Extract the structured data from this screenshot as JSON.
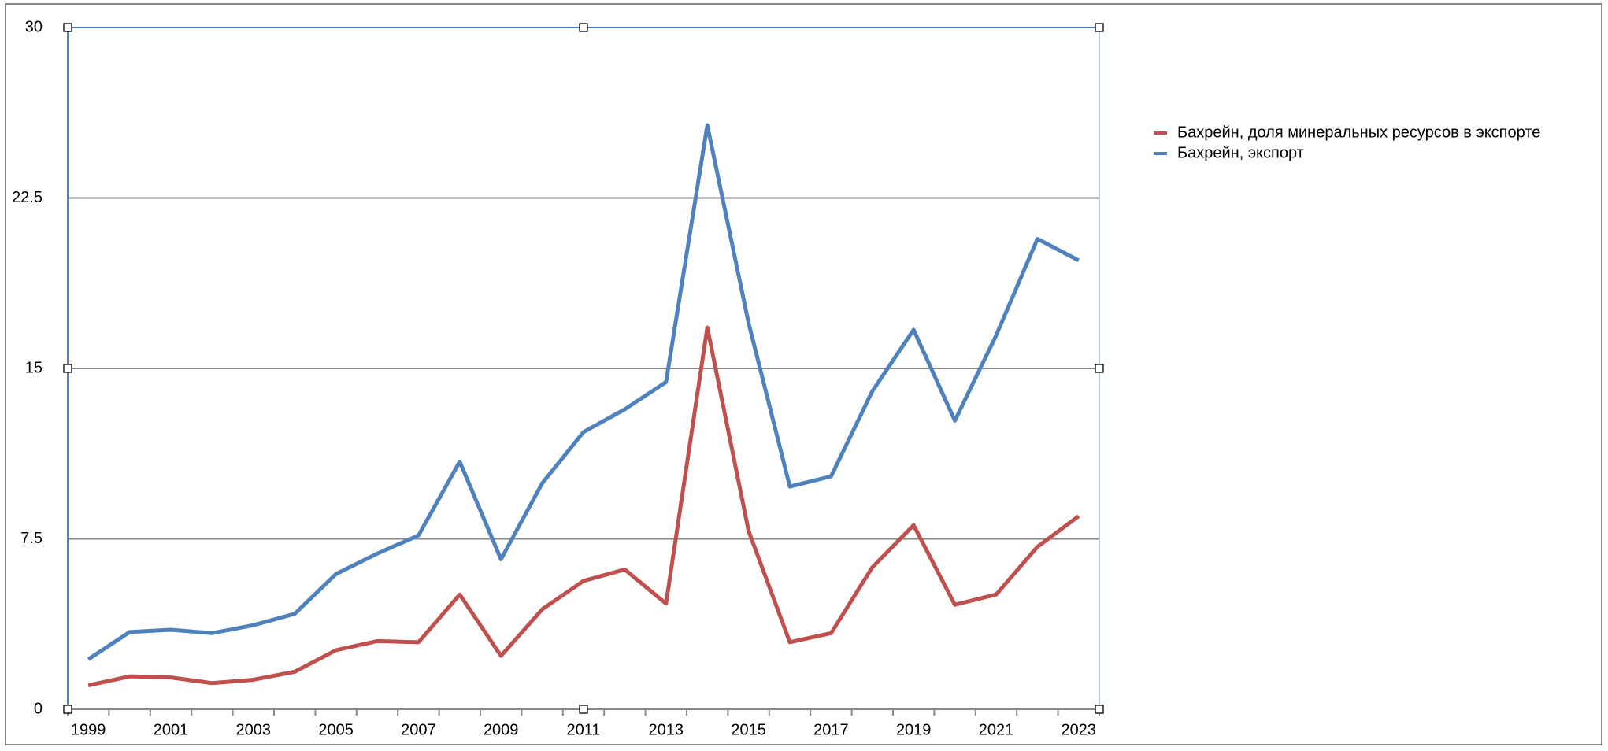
{
  "chart_data": {
    "type": "line",
    "categories": [
      "1999",
      null,
      "2001",
      null,
      "2003",
      null,
      "2005",
      null,
      "2007",
      null,
      "2009",
      null,
      "2011",
      null,
      "2013",
      null,
      "2015",
      null,
      "2017",
      null,
      "2019",
      null,
      "2021",
      null,
      "2023"
    ],
    "series": [
      {
        "name": "Бахрейн, доля минеральных ресурсов в экспорте",
        "color": "#c0504d",
        "values": [
          1.05,
          1.45,
          1.4,
          1.15,
          1.3,
          1.65,
          2.6,
          3.0,
          2.95,
          5.05,
          2.35,
          4.4,
          5.65,
          6.15,
          4.65,
          16.8,
          7.85,
          2.95,
          3.35,
          6.25,
          8.1,
          4.6,
          5.05,
          7.15,
          8.5
        ]
      },
      {
        "name": "Бахрейн, экспорт",
        "color": "#4f81bd",
        "values": [
          2.2,
          3.4,
          3.5,
          3.35,
          3.7,
          4.2,
          5.95,
          6.85,
          7.65,
          10.9,
          6.6,
          9.95,
          12.2,
          13.2,
          14.4,
          25.7,
          17.0,
          9.8,
          10.25,
          14.0,
          16.7,
          12.7,
          16.45,
          20.7,
          19.75
        ]
      }
    ],
    "ylim": [
      0,
      30
    ],
    "yticks": [
      0,
      7.5,
      15,
      22.5,
      30
    ],
    "grid": true,
    "legend": "right"
  }
}
